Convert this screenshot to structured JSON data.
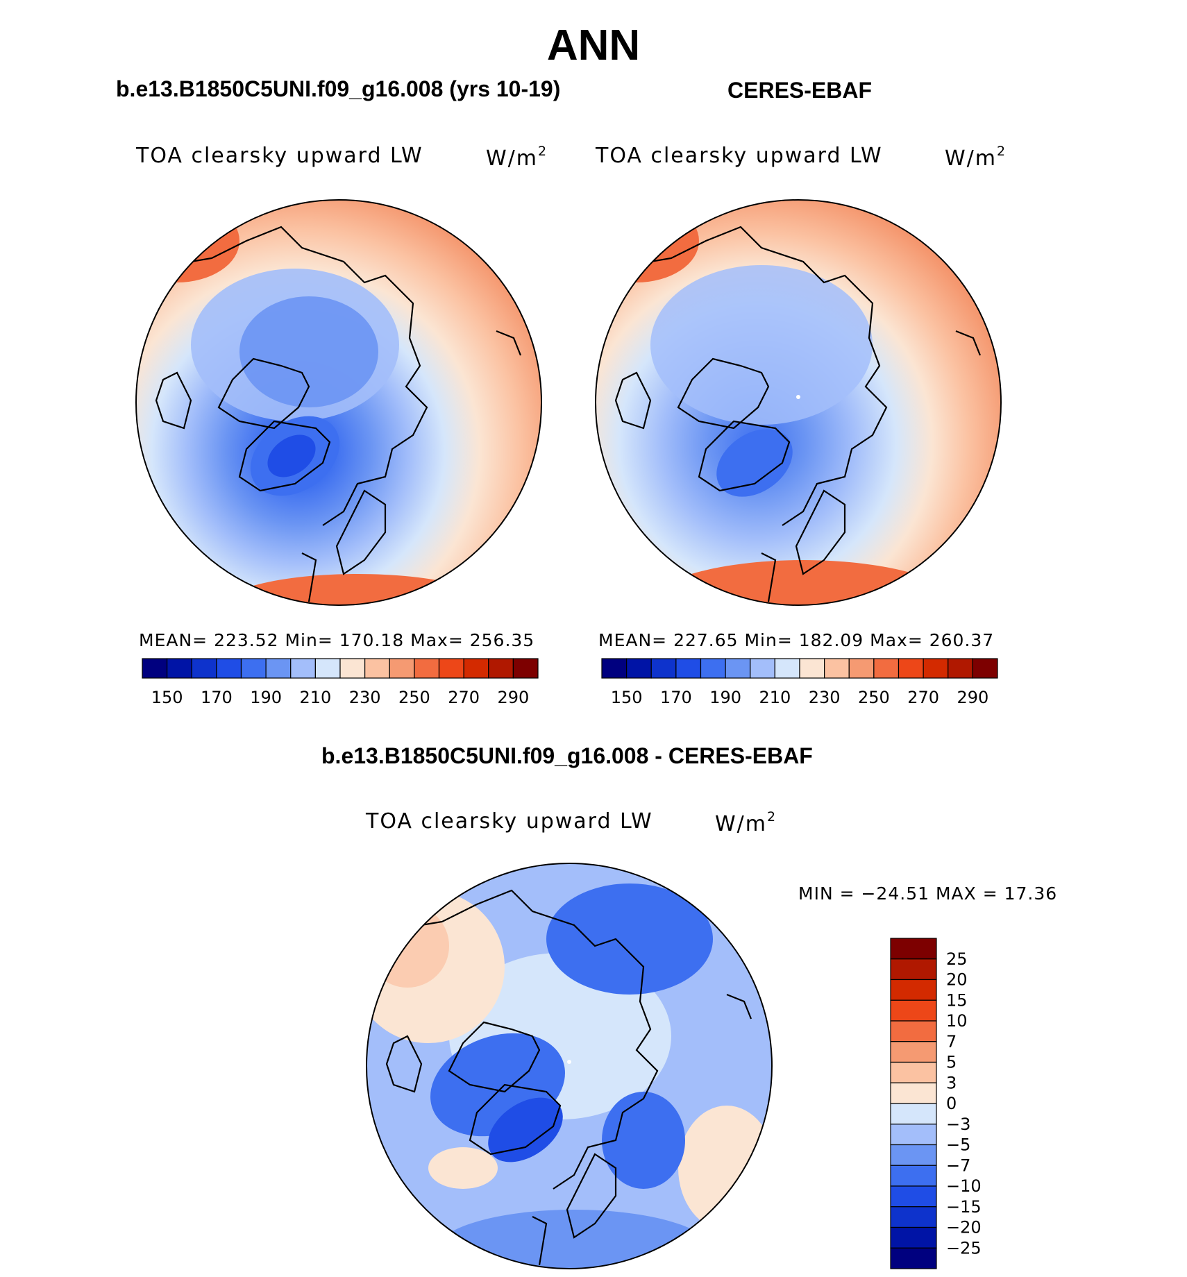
{
  "title": "ANN",
  "panels": {
    "left": {
      "title": "b.e13.B1850C5UNI.f09_g16.008 (yrs 10-19)",
      "variable": "TOA clearsky upward LW",
      "units": "W/m",
      "units_sup": "2",
      "stats": "MEAN= 223.52   Min= 170.18   Max= 256.35"
    },
    "right": {
      "title": "CERES-EBAF",
      "variable": "TOA clearsky upward LW",
      "units": "W/m",
      "units_sup": "2",
      "stats": "MEAN= 227.65   Min= 182.09   Max= 260.37"
    },
    "diff": {
      "title": "b.e13.B1850C5UNI.f09_g16.008 - CERES-EBAF",
      "variable": "TOA clearsky upward LW",
      "units": "W/m",
      "units_sup": "2",
      "stats": "MIN = −24.51 MAX =   17.36"
    }
  },
  "chart_data": [
    {
      "type": "heatmap",
      "projection": "north polar stereographic",
      "title": "b.e13.B1850C5UNI.f09_g16.008 (yrs 10-19)",
      "variable": "TOA clearsky upward LW",
      "units": "W/m2",
      "mean": 223.52,
      "min": 170.18,
      "max": 256.35,
      "colorbar": {
        "orientation": "horizontal",
        "levels": [
          150,
          160,
          170,
          180,
          190,
          200,
          210,
          220,
          230,
          240,
          250,
          260,
          270,
          280,
          290
        ],
        "tick_labels": [
          "150",
          "170",
          "190",
          "210",
          "230",
          "250",
          "270",
          "290"
        ]
      }
    },
    {
      "type": "heatmap",
      "projection": "north polar stereographic",
      "title": "CERES-EBAF",
      "variable": "TOA clearsky upward LW",
      "units": "W/m2",
      "mean": 227.65,
      "min": 182.09,
      "max": 260.37,
      "colorbar": {
        "orientation": "horizontal",
        "levels": [
          150,
          160,
          170,
          180,
          190,
          200,
          210,
          220,
          230,
          240,
          250,
          260,
          270,
          280,
          290
        ],
        "tick_labels": [
          "150",
          "170",
          "190",
          "210",
          "230",
          "250",
          "270",
          "290"
        ]
      }
    },
    {
      "type": "heatmap",
      "projection": "north polar stereographic",
      "title": "b.e13.B1850C5UNI.f09_g16.008 - CERES-EBAF",
      "variable": "TOA clearsky upward LW",
      "units": "W/m2",
      "min": -24.51,
      "max": 17.36,
      "colorbar": {
        "orientation": "vertical",
        "levels": [
          25,
          20,
          15,
          10,
          7,
          5,
          3,
          0,
          -3,
          -5,
          -7,
          -10,
          -15,
          -20,
          -25
        ],
        "tick_labels": [
          "25",
          "20",
          "15",
          "10",
          "7",
          "5",
          "3",
          "0",
          "−3",
          "−5",
          "−7",
          "−10",
          "−15",
          "−20",
          "−25"
        ]
      }
    }
  ],
  "colors": {
    "scale": [
      "#00007f",
      "#0014a6",
      "#0e33cc",
      "#1f4de6",
      "#3d6ff0",
      "#6b95f3",
      "#a3befa",
      "#d5e6fb",
      "#fbe5d3",
      "#fbc2a2",
      "#f59a72",
      "#f26c40",
      "#ed4718",
      "#d32a00",
      "#b01800",
      "#7d0000"
    ],
    "line": "#000000"
  }
}
